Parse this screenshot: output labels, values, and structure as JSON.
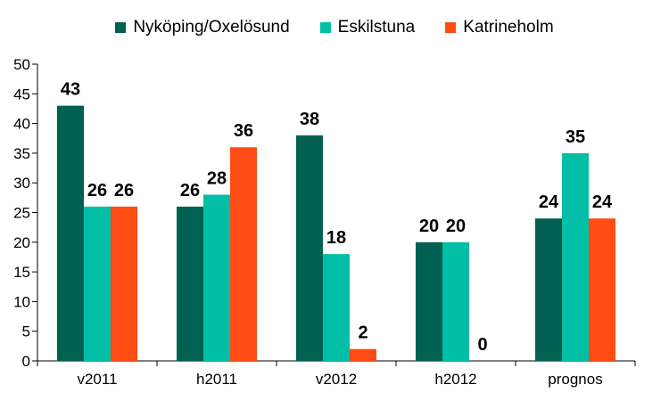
{
  "chart_data": {
    "type": "bar",
    "title": "",
    "xlabel": "",
    "ylabel": "",
    "categories": [
      "v2011",
      "h2011",
      "v2012",
      "h2012",
      "prognos"
    ],
    "series": [
      {
        "name": "Nyköping/Oxelösund",
        "color": "#006152",
        "values": [
          43,
          26,
          38,
          20,
          24
        ],
        "labels": [
          "43",
          "26",
          "38",
          "20",
          "24"
        ]
      },
      {
        "name": "Eskilstuna",
        "color": "#00BFA6",
        "values": [
          26,
          28,
          18,
          20,
          35
        ],
        "labels": [
          "26",
          "28",
          "18",
          "20",
          "35"
        ]
      },
      {
        "name": "Katrineholm",
        "color": "#FF4B14",
        "values": [
          26,
          36,
          2,
          0,
          24
        ],
        "labels": [
          "26",
          "36",
          "2",
          "0",
          "24"
        ]
      }
    ],
    "ylim": [
      0,
      50
    ],
    "yticks": [
      "0",
      "5",
      "10",
      "15",
      "20",
      "25",
      "30",
      "35",
      "40",
      "45",
      "50"
    ],
    "grid": false,
    "legend_position": "top"
  }
}
